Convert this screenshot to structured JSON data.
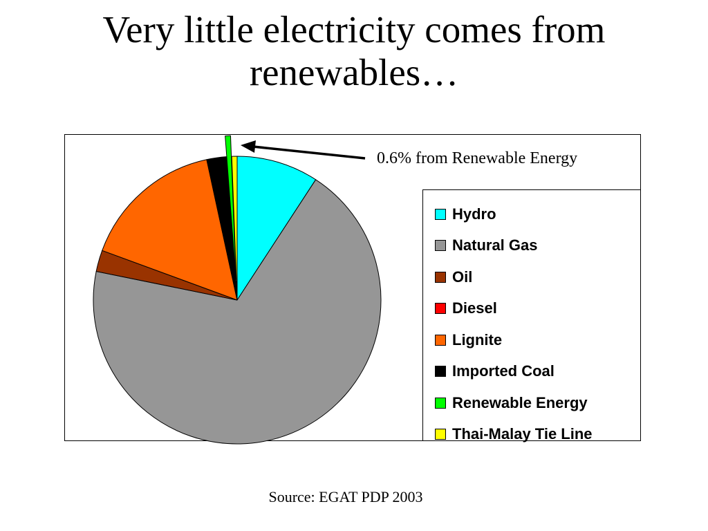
{
  "slide": {
    "title_line1": "Very little electricity comes from",
    "title_line2": "renewables…",
    "source": "Source: EGAT PDP 2003"
  },
  "chart_data": {
    "type": "pie",
    "title": "",
    "unit": "%",
    "start_angle_deg": 0,
    "direction": "clockwise",
    "exploded_slice": "Renewable Energy",
    "slices": [
      {
        "name": "Hydro",
        "value": 9.2,
        "color": "#00FFFF"
      },
      {
        "name": "Natural Gas",
        "value": 69.0,
        "color": "#969696"
      },
      {
        "name": "Oil",
        "value": 2.4,
        "color": "#993300"
      },
      {
        "name": "Diesel",
        "value": 0.0,
        "color": "#FF0000"
      },
      {
        "name": "Lignite",
        "value": 16.0,
        "color": "#FF6600"
      },
      {
        "name": "Imported Coal",
        "value": 2.2,
        "color": "#000000"
      },
      {
        "name": "Renewable Energy",
        "value": 0.6,
        "color": "#00FF00"
      },
      {
        "name": "Thai-Malay Tie Line",
        "value": 0.6,
        "color": "#FFFF00"
      }
    ],
    "annotation": "0.6% from Renewable Energy",
    "legend_position": "right"
  }
}
